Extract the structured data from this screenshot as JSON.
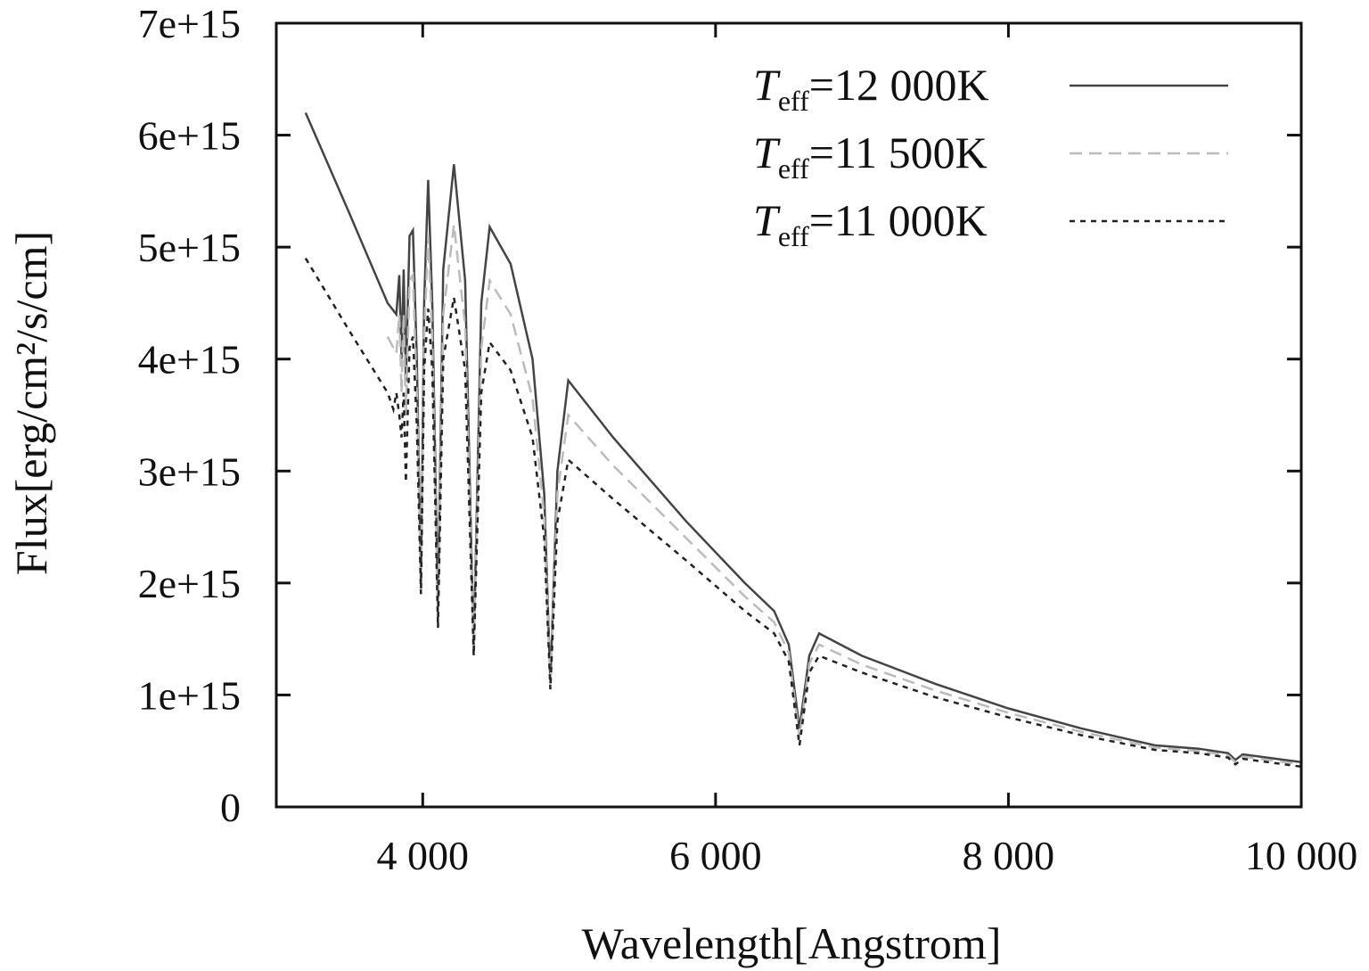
{
  "chart_data": {
    "type": "line",
    "title": "",
    "xlabel": "Wavelength[Angstrom]",
    "ylabel": "Flux[erg/cm²/s/cm]",
    "xlim": [
      3000,
      10000
    ],
    "ylim": [
      0,
      7000000000000000.0
    ],
    "x_ticks": [
      4000,
      6000,
      8000,
      10000
    ],
    "x_tick_labels": [
      "4 000",
      "6 000",
      "8 000",
      "10 000"
    ],
    "y_ticks": [
      0,
      1000000000000000.0,
      2000000000000000.0,
      3000000000000000.0,
      4000000000000000.0,
      5000000000000000.0,
      6000000000000000.0,
      7000000000000000.0
    ],
    "y_tick_labels": [
      "0",
      "1e+15",
      "2e+15",
      "3e+15",
      "4e+15",
      "5e+15",
      "6e+15",
      "7e+15"
    ],
    "y_unit_scale": 1000000000000000.0,
    "grid": false,
    "legend_position": "top-right",
    "series": [
      {
        "name": "Teff=12 000K",
        "legend": {
          "symbol": "T",
          "sub": "eff",
          "value": "=12 000K"
        },
        "color": "#444444",
        "dash": "solid",
        "points": [
          [
            3200,
            6.2
          ],
          [
            3500,
            5.3
          ],
          [
            3760,
            4.5
          ],
          [
            3820,
            4.4
          ],
          [
            3840,
            4.75
          ],
          [
            3855,
            4.0
          ],
          [
            3870,
            4.8
          ],
          [
            3885,
            3.8
          ],
          [
            3910,
            5.1
          ],
          [
            3933,
            5.15
          ],
          [
            3960,
            4.0
          ],
          [
            3988,
            2.0
          ],
          [
            4010,
            4.5
          ],
          [
            4037,
            5.6
          ],
          [
            4065,
            4.5
          ],
          [
            4104,
            1.8
          ],
          [
            4140,
            4.8
          ],
          [
            4213,
            5.74
          ],
          [
            4290,
            4.7
          ],
          [
            4348,
            1.4
          ],
          [
            4400,
            4.5
          ],
          [
            4457,
            5.18
          ],
          [
            4600,
            4.85
          ],
          [
            4750,
            4.0
          ],
          [
            4830,
            2.8
          ],
          [
            4872,
            1.1
          ],
          [
            4920,
            3.0
          ],
          [
            4994,
            3.81
          ],
          [
            5300,
            3.3
          ],
          [
            5800,
            2.55
          ],
          [
            6200,
            2.0
          ],
          [
            6400,
            1.75
          ],
          [
            6500,
            1.45
          ],
          [
            6573,
            0.7
          ],
          [
            6640,
            1.35
          ],
          [
            6707,
            1.55
          ],
          [
            7000,
            1.35
          ],
          [
            7500,
            1.1
          ],
          [
            8000,
            0.88
          ],
          [
            8500,
            0.7
          ],
          [
            9000,
            0.55
          ],
          [
            9300,
            0.52
          ],
          [
            9500,
            0.48
          ],
          [
            9550,
            0.42
          ],
          [
            9600,
            0.47
          ],
          [
            10000,
            0.4
          ]
        ]
      },
      {
        "name": "Teff=11 500K",
        "legend": {
          "symbol": "T",
          "sub": "eff",
          "value": "=11 500K"
        },
        "color": "#bbbbbb",
        "dash": "14,8",
        "points": [
          [
            3760,
            4.2
          ],
          [
            3820,
            4.05
          ],
          [
            3840,
            4.4
          ],
          [
            3855,
            3.7
          ],
          [
            3870,
            4.4
          ],
          [
            3885,
            3.5
          ],
          [
            3910,
            4.7
          ],
          [
            3933,
            4.75
          ],
          [
            3960,
            3.7
          ],
          [
            3988,
            1.95
          ],
          [
            4010,
            4.2
          ],
          [
            4037,
            5.1
          ],
          [
            4065,
            4.2
          ],
          [
            4104,
            1.7
          ],
          [
            4140,
            4.4
          ],
          [
            4213,
            5.2
          ],
          [
            4290,
            4.3
          ],
          [
            4348,
            1.38
          ],
          [
            4400,
            4.1
          ],
          [
            4457,
            4.7
          ],
          [
            4600,
            4.4
          ],
          [
            4750,
            3.65
          ],
          [
            4830,
            2.6
          ],
          [
            4872,
            1.08
          ],
          [
            4920,
            2.8
          ],
          [
            4994,
            3.5
          ],
          [
            5300,
            3.05
          ],
          [
            5800,
            2.4
          ],
          [
            6200,
            1.88
          ],
          [
            6400,
            1.65
          ],
          [
            6500,
            1.38
          ],
          [
            6573,
            0.62
          ],
          [
            6640,
            1.28
          ],
          [
            6707,
            1.45
          ],
          [
            7000,
            1.27
          ],
          [
            7500,
            1.04
          ],
          [
            8000,
            0.84
          ],
          [
            8500,
            0.67
          ],
          [
            9000,
            0.53
          ],
          [
            9300,
            0.5
          ],
          [
            9500,
            0.46
          ],
          [
            9550,
            0.4
          ],
          [
            9600,
            0.45
          ],
          [
            10000,
            0.38
          ]
        ]
      },
      {
        "name": "Teff=11 000K",
        "legend": {
          "symbol": "T",
          "sub": "eff",
          "value": "=11 000K"
        },
        "color": "#222222",
        "dash": "6,6",
        "points": [
          [
            3200,
            4.9
          ],
          [
            3500,
            4.25
          ],
          [
            3760,
            3.7
          ],
          [
            3800,
            3.55
          ],
          [
            3820,
            3.7
          ],
          [
            3840,
            3.5
          ],
          [
            3855,
            3.3
          ],
          [
            3870,
            3.7
          ],
          [
            3885,
            2.9
          ],
          [
            3910,
            4.1
          ],
          [
            3933,
            4.2
          ],
          [
            3960,
            3.4
          ],
          [
            3988,
            1.9
          ],
          [
            4010,
            3.9
          ],
          [
            4037,
            4.45
          ],
          [
            4065,
            3.9
          ],
          [
            4104,
            1.6
          ],
          [
            4140,
            4.0
          ],
          [
            4213,
            4.55
          ],
          [
            4290,
            3.9
          ],
          [
            4348,
            1.35
          ],
          [
            4400,
            3.7
          ],
          [
            4457,
            4.15
          ],
          [
            4600,
            3.9
          ],
          [
            4750,
            3.3
          ],
          [
            4830,
            2.4
          ],
          [
            4872,
            1.05
          ],
          [
            4920,
            2.55
          ],
          [
            4994,
            3.1
          ],
          [
            5300,
            2.75
          ],
          [
            5800,
            2.2
          ],
          [
            6200,
            1.75
          ],
          [
            6400,
            1.55
          ],
          [
            6500,
            1.3
          ],
          [
            6573,
            0.55
          ],
          [
            6640,
            1.2
          ],
          [
            6707,
            1.35
          ],
          [
            7000,
            1.2
          ],
          [
            7500,
            0.98
          ],
          [
            8000,
            0.8
          ],
          [
            8500,
            0.64
          ],
          [
            9000,
            0.51
          ],
          [
            9300,
            0.48
          ],
          [
            9500,
            0.44
          ],
          [
            9550,
            0.38
          ],
          [
            9600,
            0.43
          ],
          [
            10000,
            0.36
          ]
        ]
      }
    ]
  }
}
